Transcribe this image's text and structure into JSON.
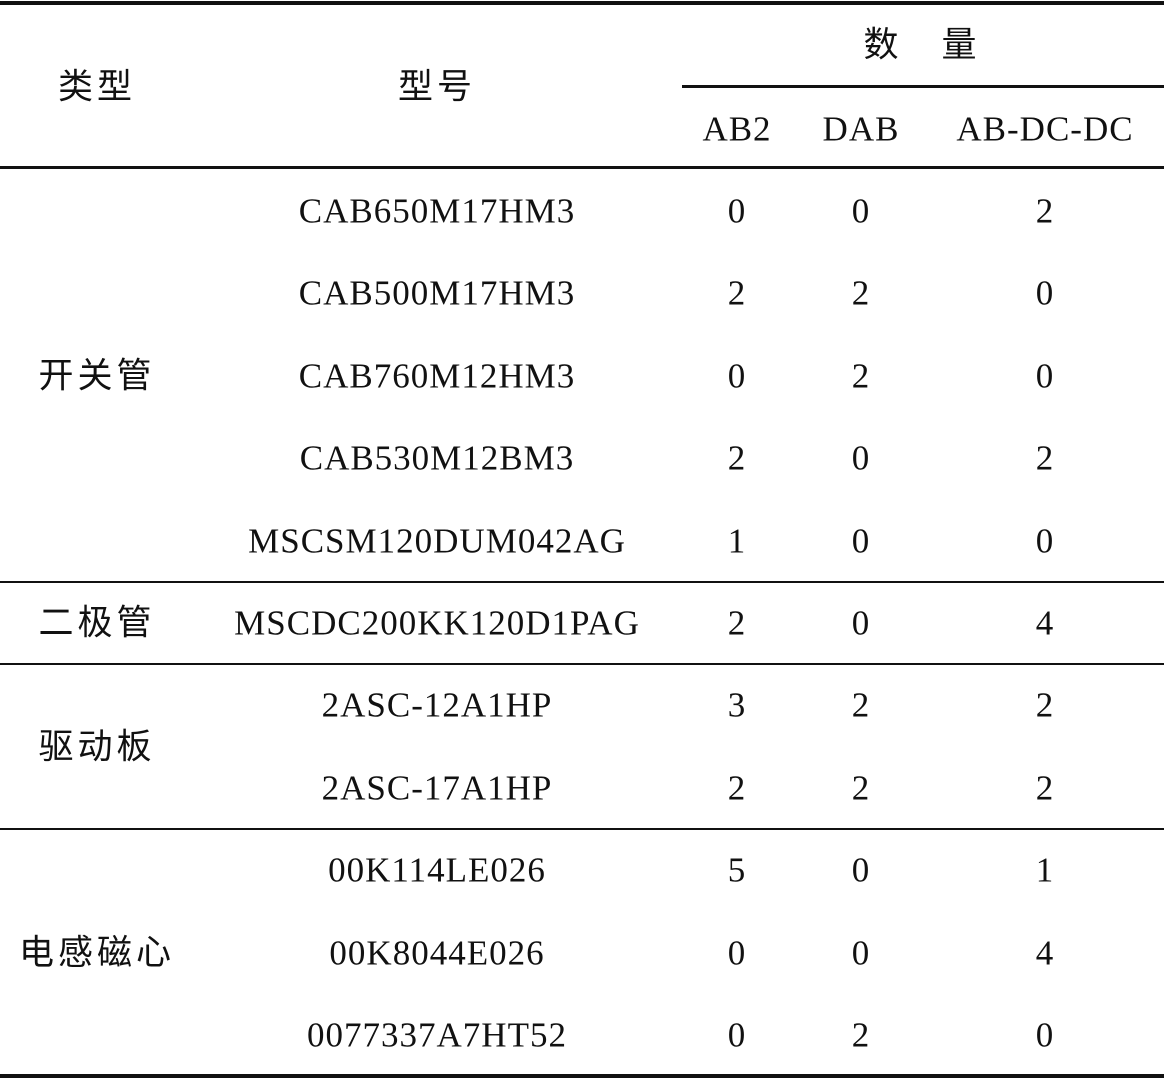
{
  "header": {
    "type": "类型",
    "model": "型号",
    "quantity": "数　量",
    "columns": [
      "AB2",
      "DAB",
      "AB-DC-DC"
    ]
  },
  "groups": [
    {
      "type": "开关管",
      "rows": [
        {
          "model": "CAB650M17HM3",
          "values": [
            "0",
            "0",
            "2"
          ]
        },
        {
          "model": "CAB500M17HM3",
          "values": [
            "2",
            "2",
            "0"
          ]
        },
        {
          "model": "CAB760M12HM3",
          "values": [
            "0",
            "2",
            "0"
          ]
        },
        {
          "model": "CAB530M12BM3",
          "values": [
            "2",
            "0",
            "2"
          ]
        },
        {
          "model": "MSCSM120DUM042AG",
          "values": [
            "1",
            "0",
            "0"
          ]
        }
      ]
    },
    {
      "type": "二极管",
      "rows": [
        {
          "model": "MSCDC200KK120D1PAG",
          "values": [
            "2",
            "0",
            "4"
          ]
        }
      ]
    },
    {
      "type": "驱动板",
      "rows": [
        {
          "model": "2ASC-12A1HP",
          "values": [
            "3",
            "2",
            "2"
          ]
        },
        {
          "model": "2ASC-17A1HP",
          "values": [
            "2",
            "2",
            "2"
          ]
        }
      ]
    },
    {
      "type": "电感磁心",
      "rows": [
        {
          "model": "00K114LE026",
          "values": [
            "5",
            "0",
            "1"
          ]
        },
        {
          "model": "00K8044E026",
          "values": [
            "0",
            "0",
            "4"
          ]
        },
        {
          "model": "0077337A7HT52",
          "values": [
            "0",
            "2",
            "0"
          ]
        }
      ]
    }
  ]
}
